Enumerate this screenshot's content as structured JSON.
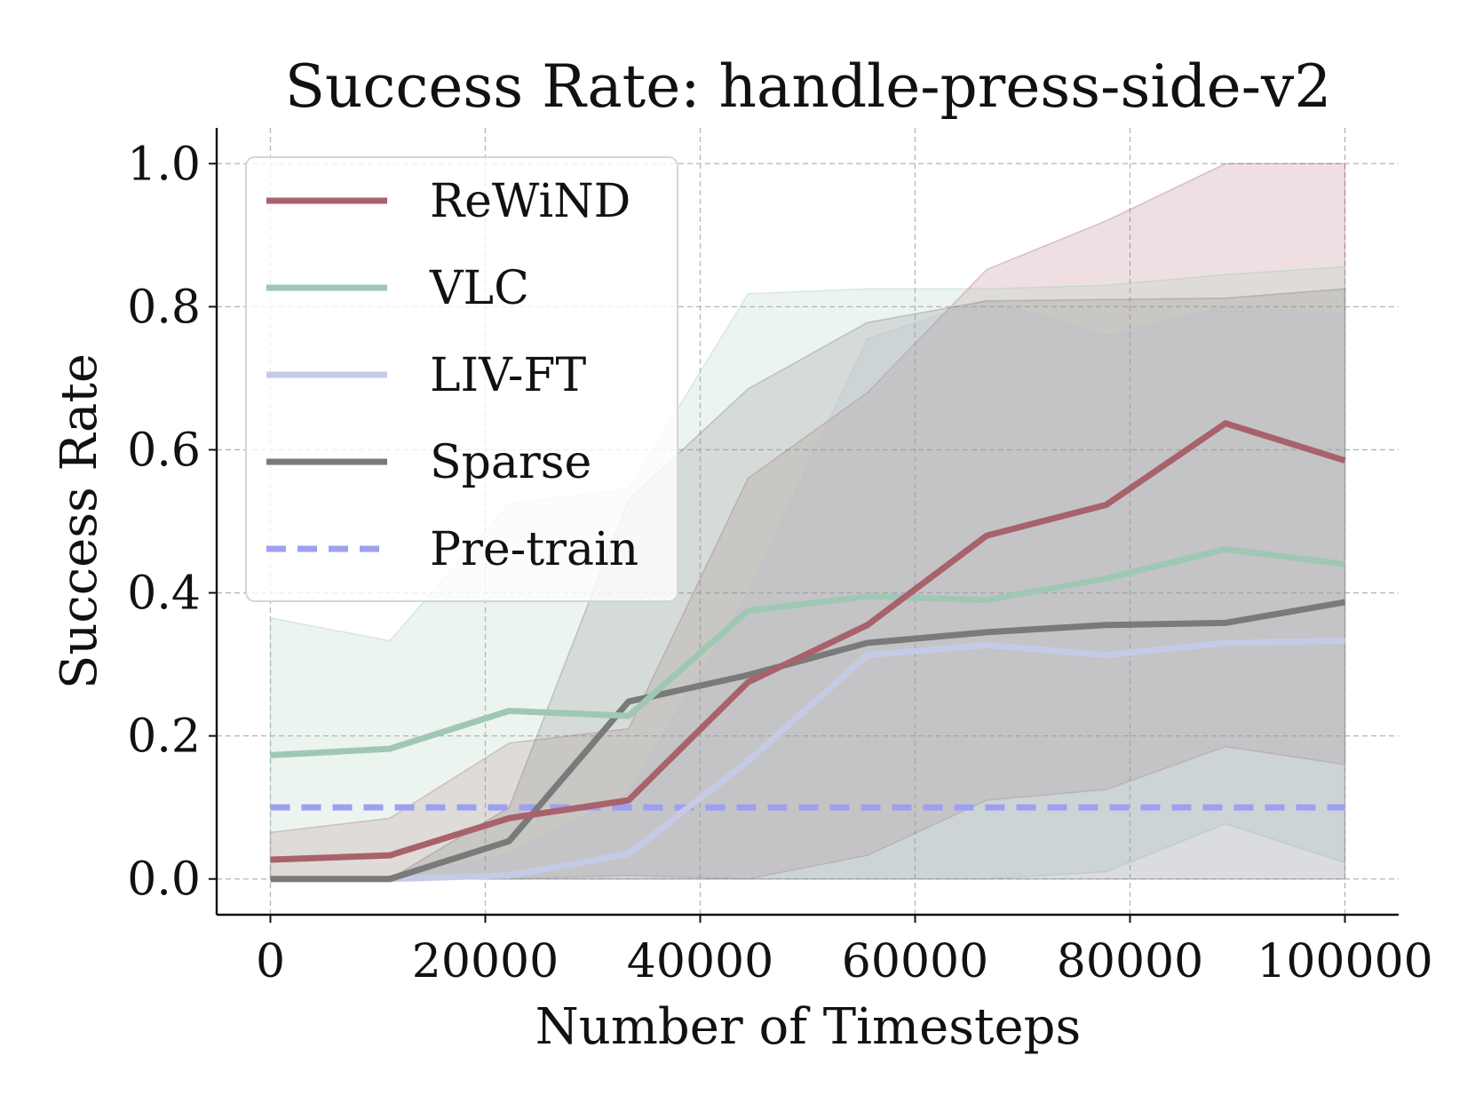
{
  "chart_data": {
    "type": "line",
    "title": "Success Rate: handle-press-side-v2",
    "xlabel": "Number of Timesteps",
    "ylabel": "Success Rate",
    "xlim": [
      -5000,
      105000
    ],
    "ylim": [
      -0.05,
      1.05
    ],
    "xticks": [
      0,
      20000,
      40000,
      60000,
      80000,
      100000
    ],
    "xtick_labels": [
      "0",
      "20000",
      "40000",
      "60000",
      "80000",
      "100000"
    ],
    "yticks": [
      0.0,
      0.2,
      0.4,
      0.6,
      0.8,
      1.0
    ],
    "ytick_labels": [
      "0.0",
      "0.2",
      "0.4",
      "0.6",
      "0.8",
      "1.0"
    ],
    "grid": true,
    "legend_position": "top-left",
    "x": [
      0,
      11111,
      22222,
      33333,
      44444,
      55556,
      66667,
      77778,
      88889,
      100000
    ],
    "series": [
      {
        "name": "ReWiND",
        "color": "#a8626c",
        "dashed": false,
        "values": [
          0.027,
          0.033,
          0.085,
          0.11,
          0.275,
          0.355,
          0.48,
          0.523,
          0.637,
          0.585
        ],
        "band_lower": [
          0.0,
          0.0,
          0.0,
          0.005,
          0.0,
          0.033,
          0.11,
          0.125,
          0.185,
          0.16
        ],
        "band_upper": [
          0.065,
          0.085,
          0.19,
          0.21,
          0.56,
          0.68,
          0.852,
          0.92,
          1.0,
          1.0
        ]
      },
      {
        "name": "VLC",
        "color": "#9fc8b4",
        "dashed": false,
        "values": [
          0.173,
          0.182,
          0.235,
          0.228,
          0.375,
          0.395,
          0.39,
          0.42,
          0.461,
          0.44
        ],
        "band_lower": [
          0.0,
          0.0,
          0.0,
          0.0,
          0.0,
          0.0,
          0.0,
          0.01,
          0.077,
          0.023
        ],
        "band_upper": [
          0.365,
          0.333,
          0.525,
          0.545,
          0.818,
          0.825,
          0.825,
          0.83,
          0.845,
          0.856
        ]
      },
      {
        "name": "LIV-FT",
        "color": "#c5cbe6",
        "dashed": false,
        "values": [
          0.0,
          0.0,
          0.005,
          0.035,
          0.165,
          0.313,
          0.327,
          0.313,
          0.33,
          0.333
        ],
        "band_lower": [
          0.0,
          0.0,
          0.0,
          0.0,
          0.0,
          0.0,
          0.0,
          0.0,
          0.0,
          0.0
        ],
        "band_upper": [
          0.0,
          0.0,
          0.035,
          0.12,
          0.4,
          0.755,
          0.81,
          0.76,
          0.8,
          0.79
        ]
      },
      {
        "name": "Sparse",
        "color": "#7a7a7a",
        "dashed": false,
        "values": [
          0.0,
          0.0,
          0.053,
          0.248,
          0.285,
          0.33,
          0.345,
          0.355,
          0.358,
          0.387
        ],
        "band_lower": [
          0.0,
          0.0,
          0.0,
          0.0,
          0.0,
          0.0,
          0.0,
          0.0,
          0.0,
          0.0
        ],
        "band_upper": [
          0.0,
          0.0,
          0.1,
          0.53,
          0.685,
          0.778,
          0.808,
          0.81,
          0.812,
          0.825
        ]
      },
      {
        "name": "Pre-train",
        "color": "#9da0f0",
        "dashed": true,
        "values": [
          0.1,
          0.1,
          0.1,
          0.1,
          0.1,
          0.1,
          0.1,
          0.1,
          0.1,
          0.1
        ]
      }
    ]
  }
}
